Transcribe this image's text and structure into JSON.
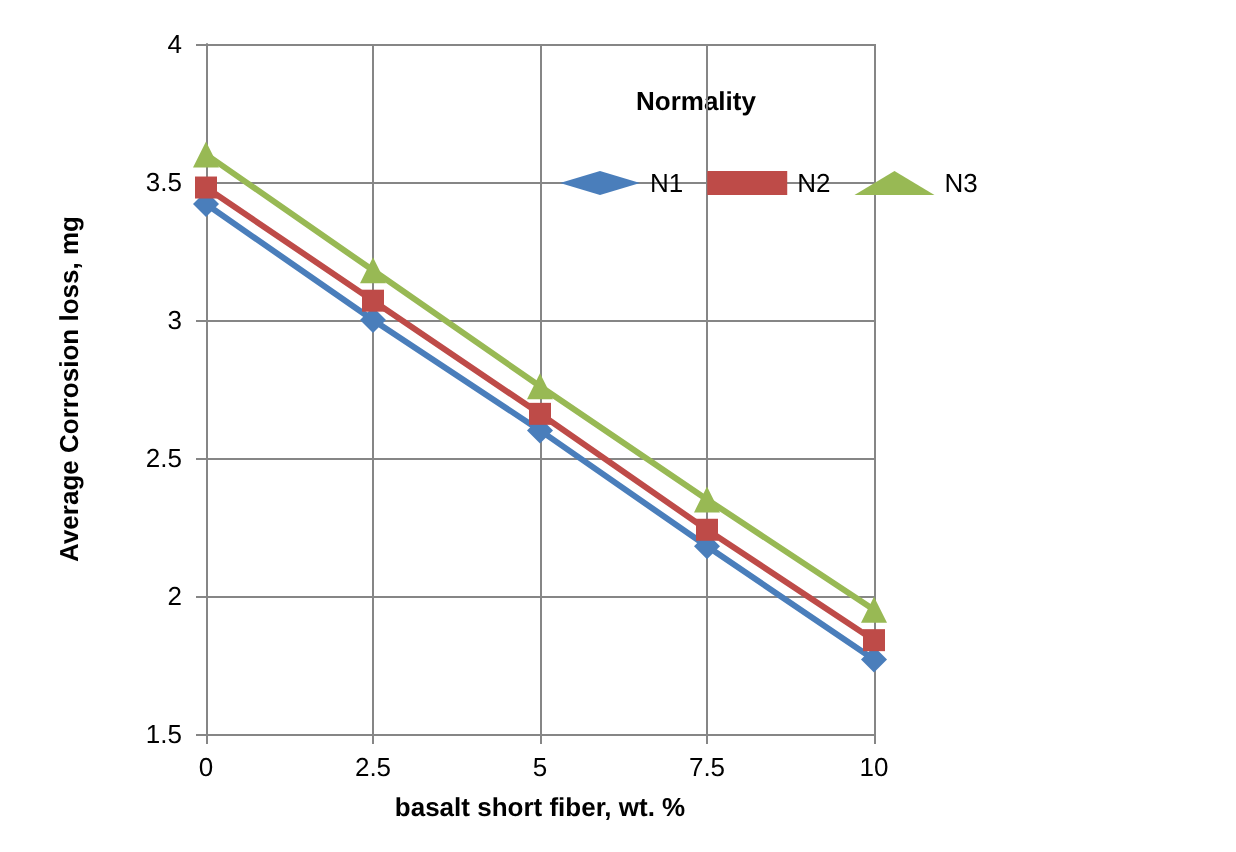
{
  "chart_data": {
    "type": "line",
    "xlabel": "basalt short fiber, wt. %",
    "ylabel": "Average Corrosion loss, mg",
    "legend_title": "Normality",
    "x": [
      0,
      2.5,
      5,
      7.5,
      10
    ],
    "series": [
      {
        "name": "N1",
        "color": "#4a7ebb",
        "marker": "diamond",
        "values": [
          3.42,
          3.0,
          2.6,
          2.18,
          1.77
        ]
      },
      {
        "name": "N2",
        "color": "#be4b48",
        "marker": "square",
        "values": [
          3.48,
          3.07,
          2.66,
          2.24,
          1.84
        ]
      },
      {
        "name": "N3",
        "color": "#98b954",
        "marker": "triangle",
        "values": [
          3.6,
          3.18,
          2.76,
          2.35,
          1.95
        ]
      }
    ],
    "xlim": [
      0,
      10
    ],
    "xticks": [
      0,
      2.5,
      5,
      7.5,
      10
    ],
    "ylim": [
      1.5,
      4
    ],
    "yticks": [
      1.5,
      2,
      2.5,
      3,
      3.5,
      4
    ],
    "grid": true,
    "legend": "top right"
  }
}
